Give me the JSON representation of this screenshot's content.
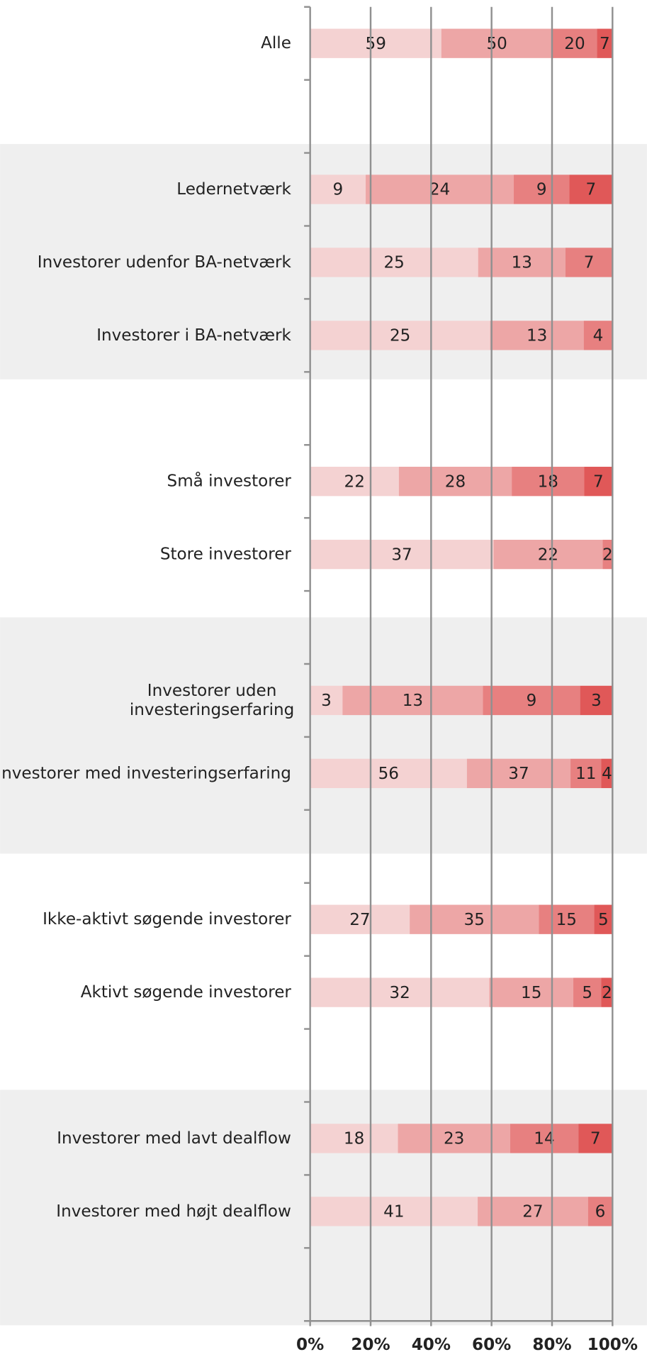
{
  "chart_data": {
    "type": "bar",
    "orientation": "horizontal",
    "stacked": "percent",
    "categories": [
      "Alle",
      null,
      "Ledernetværk",
      "Investorer udenfor BA-netværk",
      "Investorer i BA-netværk",
      null,
      "Små investorer",
      "Store investorer",
      null,
      "Investorer uden\ninvesteringserfaring",
      "Investorer med investeringserfaring",
      null,
      "Ikke-aktivt søgende investorer",
      "Aktivt søgende investorer",
      null,
      "Investorer med lavt dealflow",
      "Investorer med højt dealflow",
      null
    ],
    "series": [
      {
        "color": "#f4d2d2",
        "values": [
          59,
          null,
          9,
          25,
          25,
          null,
          22,
          37,
          null,
          3,
          56,
          null,
          27,
          32,
          null,
          18,
          41,
          null
        ]
      },
      {
        "color": "#eda6a6",
        "values": [
          50,
          null,
          24,
          13,
          13,
          null,
          28,
          22,
          null,
          13,
          37,
          null,
          35,
          15,
          null,
          23,
          27,
          null
        ]
      },
      {
        "color": "#e78080",
        "values": [
          20,
          null,
          9,
          7,
          4,
          null,
          18,
          2,
          null,
          9,
          11,
          null,
          15,
          5,
          null,
          14,
          6,
          null
        ]
      },
      {
        "color": "#e05858",
        "values": [
          7,
          null,
          7,
          null,
          null,
          null,
          7,
          null,
          null,
          3,
          4,
          null,
          5,
          2,
          null,
          7,
          null,
          null
        ]
      }
    ],
    "xlim": [
      0,
      100
    ],
    "xticks": [
      {
        "value": 0,
        "label": "0%"
      },
      {
        "value": 20,
        "label": "20%"
      },
      {
        "value": 40,
        "label": "40%"
      },
      {
        "value": 60,
        "label": "60%"
      },
      {
        "value": 80,
        "label": "80%"
      },
      {
        "value": 100,
        "label": "100%"
      }
    ],
    "grid": true
  }
}
